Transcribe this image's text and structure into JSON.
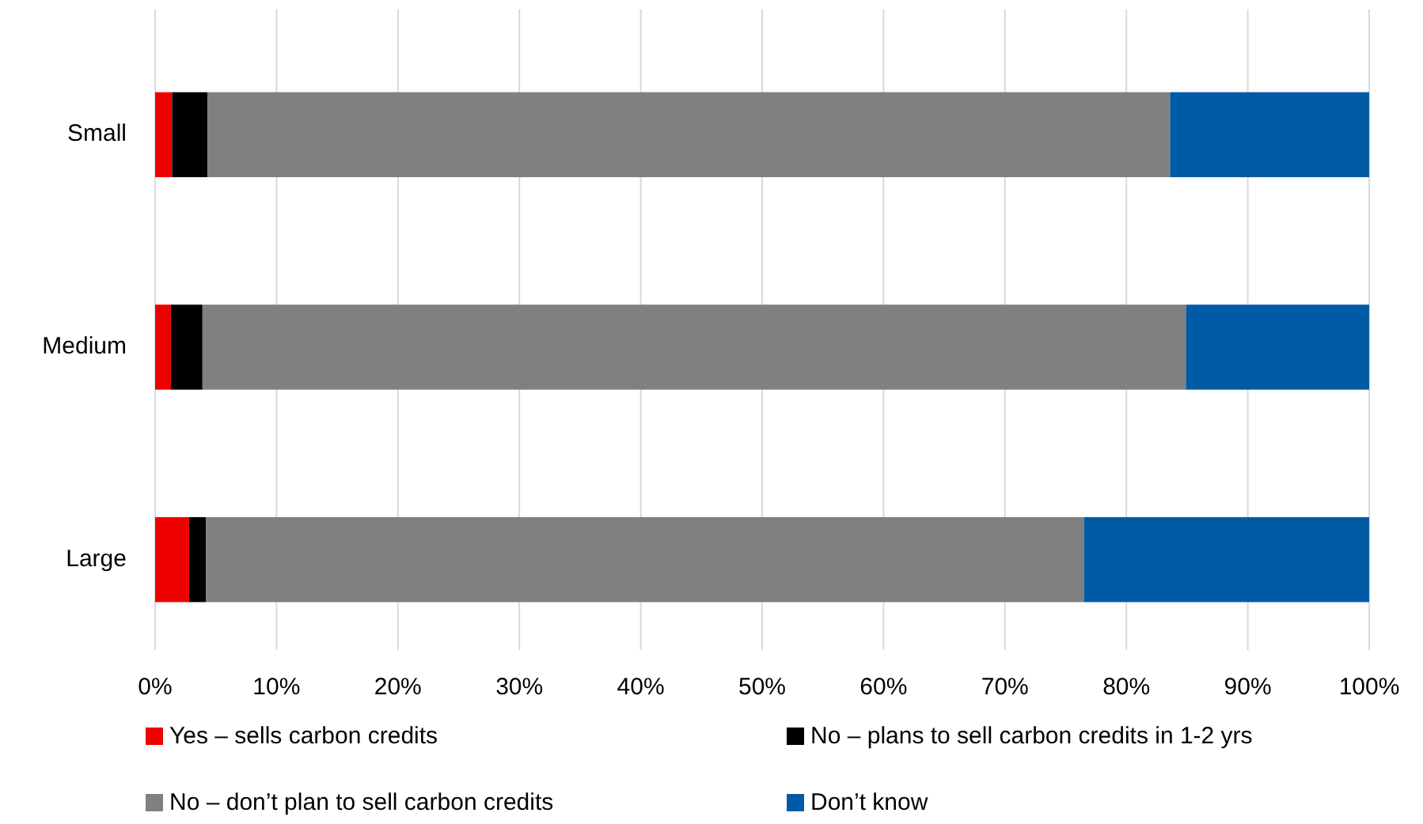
{
  "chart_data": {
    "type": "bar",
    "orientation": "horizontal",
    "stacked": true,
    "categories": [
      "Small",
      "Medium",
      "Large"
    ],
    "series": [
      {
        "name": "Yes – sells carbon credits",
        "color": "#ee0000",
        "values": [
          1.4,
          1.3,
          2.8
        ]
      },
      {
        "name": "No – plans to sell carbon credits in 1-2 yrs",
        "color": "#000000",
        "values": [
          2.9,
          2.6,
          1.4
        ]
      },
      {
        "name": "No – don’t plan to sell carbon credits",
        "color": "#808080",
        "values": [
          79.3,
          81.0,
          72.3
        ]
      },
      {
        "name": "Don’t know",
        "color": "#005ba6",
        "values": [
          16.4,
          15.1,
          23.5
        ]
      }
    ],
    "xlim": [
      0,
      100
    ],
    "xticks": [
      {
        "value": 0,
        "label": "0%"
      },
      {
        "value": 10,
        "label": "10%"
      },
      {
        "value": 20,
        "label": "20%"
      },
      {
        "value": 30,
        "label": "30%"
      },
      {
        "value": 40,
        "label": "40%"
      },
      {
        "value": 50,
        "label": "50%"
      },
      {
        "value": 60,
        "label": "60%"
      },
      {
        "value": 70,
        "label": "70%"
      },
      {
        "value": 80,
        "label": "80%"
      },
      {
        "value": 90,
        "label": "90%"
      },
      {
        "value": 100,
        "label": "100%"
      }
    ],
    "grid": "x",
    "legend": "bottom"
  }
}
